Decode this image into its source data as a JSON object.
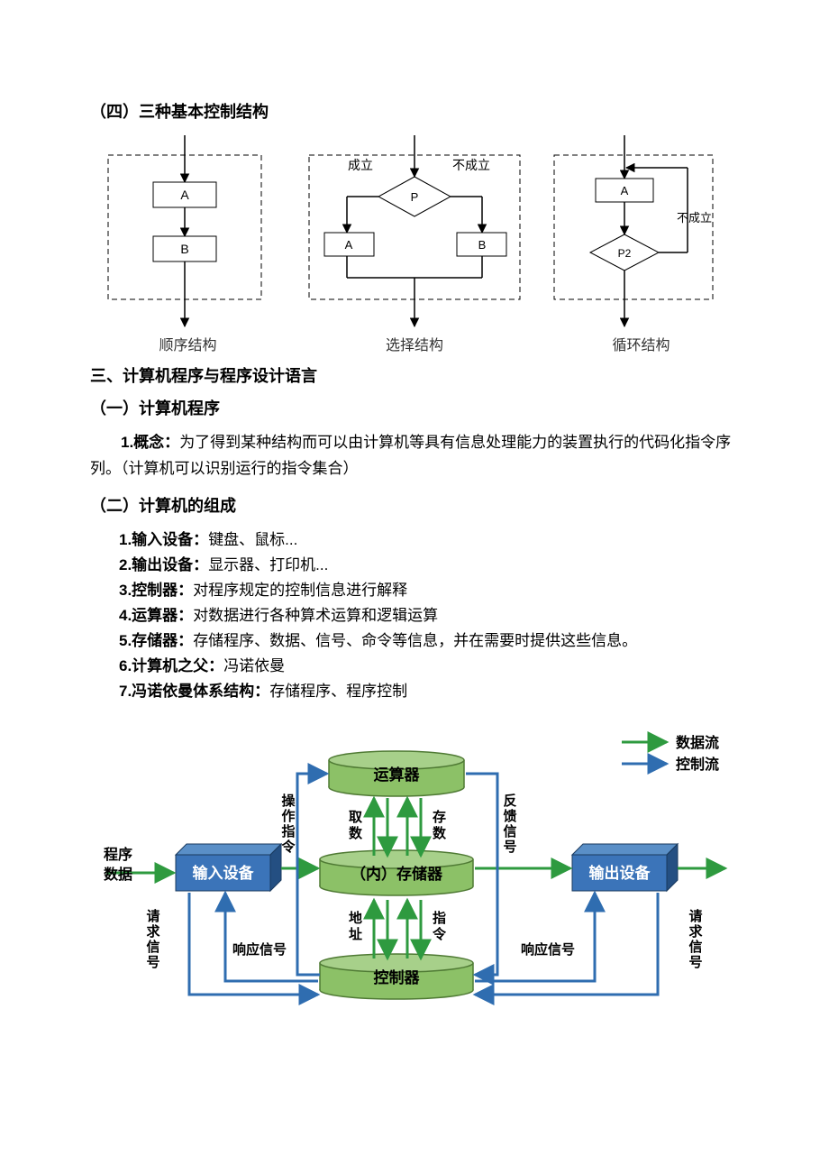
{
  "headings": {
    "h_four": "（四）三种基本控制结构",
    "h_three": "三、计算机程序与程序设计语言",
    "h_one": "（一）计算机程序",
    "h_two": "（二）计算机的组成"
  },
  "flowcharts": {
    "stroke": "#000000",
    "dash": "6,4",
    "sequence": {
      "caption": "顺序结构",
      "boxes": [
        "A",
        "B"
      ]
    },
    "selection": {
      "caption": "选择结构",
      "condition": "P",
      "left_label": "成立",
      "right_label": "不成立",
      "left_box": "A",
      "right_box": "B"
    },
    "loop": {
      "caption": "循环结构",
      "box": "A",
      "condition": "P2",
      "false_label": "不成立"
    }
  },
  "concept": {
    "label": "1.概念：",
    "text": "为了得到某种结构而可以由计算机等具有信息处理能力的装置执行的代码化指令序列。（计算机可以识别运行的指令集合）"
  },
  "components": [
    {
      "label": "1.输入设备：",
      "text": "键盘、鼠标..."
    },
    {
      "label": "2.输出设备：",
      "text": "显示器、打印机..."
    },
    {
      "label": "3.控制器：",
      "text": "对程序规定的控制信息进行解释"
    },
    {
      "label": "4.运算器：",
      "text": "对数据进行各种算术运算和逻辑运算"
    },
    {
      "label": "5.存储器：",
      "text": "存储程序、数据、信号、命令等信息，并在需要时提供这些信息。"
    },
    {
      "label": "6.计算机之父：",
      "text": "冯诺依曼"
    },
    {
      "label": "7.冯诺依曼体系结构：",
      "text": "存储程序、程序控制"
    }
  ],
  "arch": {
    "colors": {
      "input_top": "#3b74b9",
      "input_side": "#244f82",
      "output_top": "#3b74b9",
      "output_side": "#244f82",
      "cyl_top": "#a7d08a",
      "cyl_body": "#8cc167",
      "cyl_stroke": "#4f7a34",
      "data_arrow": "#2e9a3f",
      "ctrl_arrow": "#2f6db0",
      "text": "#000000",
      "white": "#ffffff"
    },
    "labels": {
      "alu": "运算器",
      "memory": "（内）存储器",
      "controller": "控制器",
      "input": "输入设备",
      "output": "输出设备",
      "legend_data": "数据流",
      "legend_ctrl": "控制流",
      "program_data_1": "程序",
      "program_data_2": "数据",
      "op_cmd": "操作指令",
      "fetch": "取数",
      "store": "存数",
      "feedback": "反馈信号",
      "addr": "地址",
      "instr": "指令",
      "resp": "响应信号",
      "req": "请求信号"
    }
  }
}
